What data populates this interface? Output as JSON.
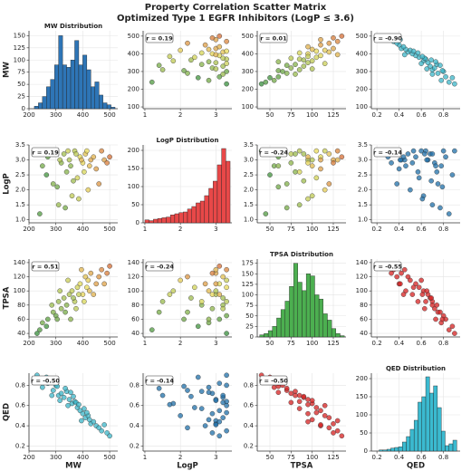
{
  "chart_data": {
    "type": "scatter_matrix",
    "title": "Property Correlation Scatter Matrix",
    "subtitle": "Optimized Type 1 EGFR Inhibitors (LogP ≤ 3.6)",
    "grid": true,
    "color_by": "QED",
    "colormap": [
      "#c8281e",
      "#e8dc5a",
      "#2e8b3a"
    ],
    "variables": [
      {
        "name": "MW",
        "point_color": "#3bb5c8",
        "values": [
          250,
          270,
          290,
          300,
          310,
          320,
          330,
          340,
          350,
          360,
          370,
          380,
          390,
          400,
          410,
          420,
          430,
          450,
          470,
          500,
          240,
          265,
          285,
          305,
          315,
          335,
          345,
          355,
          365,
          375,
          385,
          395,
          405,
          415,
          425,
          440,
          460,
          480,
          490,
          230
        ],
        "xlim": [
          200,
          530
        ],
        "xticks": [
          200,
          300,
          400,
          500
        ],
        "ylim": [
          90,
          530
        ],
        "yticks": [
          100,
          200,
          300,
          400,
          500
        ],
        "hist": {
          "title": "MW Distribution",
          "color": "#2e75b6",
          "bins": [
            220,
            235,
            250,
            265,
            280,
            295,
            310,
            325,
            340,
            355,
            370,
            385,
            400,
            415,
            430,
            445,
            460,
            475,
            490,
            505,
            520
          ],
          "counts": [
            5,
            12,
            25,
            45,
            60,
            90,
            150,
            90,
            85,
            100,
            140,
            90,
            110,
            80,
            45,
            55,
            28,
            12,
            8,
            3
          ],
          "ylim": [
            0,
            160
          ],
          "yticks": [
            0,
            25,
            50,
            75,
            100,
            125,
            150
          ]
        }
      },
      {
        "name": "LogP",
        "point_color": "#1f6fa8",
        "values": [
          2.8,
          3.1,
          2.2,
          3.3,
          1.5,
          2.9,
          3.2,
          2.6,
          3.0,
          1.8,
          3.3,
          2.4,
          3.1,
          2.9,
          3.2,
          2.0,
          3.0,
          2.7,
          3.3,
          3.1,
          1.2,
          2.5,
          3.2,
          2.1,
          3.0,
          1.4,
          3.3,
          2.8,
          2.3,
          3.2,
          1.7,
          3.0,
          2.6,
          3.3,
          2.8,
          3.1,
          2.2,
          3.0,
          2.9,
          3.3
        ],
        "xlim": [
          0.95,
          3.45
        ],
        "xticks": [
          1,
          2,
          3
        ],
        "ylim": [
          0.9,
          3.5
        ],
        "yticks": [
          {
            "value": 1,
            "label": "1.0"
          },
          1.5,
          {
            "value": 2,
            "label": "2.0"
          },
          2.5,
          {
            "value": 3,
            "label": "3.0"
          },
          3.5
        ],
        "hist": {
          "title": "LogP Distribution",
          "color": "#e84848",
          "bins": [
            1.0,
            1.12,
            1.24,
            1.36,
            1.48,
            1.6,
            1.72,
            1.84,
            1.96,
            2.08,
            2.2,
            2.32,
            2.44,
            2.56,
            2.68,
            2.8,
            2.92,
            3.04,
            3.16,
            3.28,
            3.4
          ],
          "counts": [
            8,
            6,
            10,
            12,
            14,
            16,
            22,
            25,
            28,
            30,
            38,
            45,
            55,
            60,
            75,
            95,
            115,
            160,
            205,
            170
          ],
          "ylim": [
            0,
            215
          ],
          "yticks": [
            0,
            50,
            100,
            150,
            200
          ]
        }
      },
      {
        "name": "TPSA",
        "point_color": "#d62020",
        "values": [
          55,
          60,
          70,
          65,
          85,
          75,
          90,
          80,
          95,
          100,
          85,
          105,
          110,
          95,
          120,
          115,
          125,
          110,
          130,
          135,
          45,
          50,
          80,
          60,
          100,
          70,
          115,
          60,
          90,
          75,
          95,
          130,
          85,
          105,
          100,
          95,
          120,
          110,
          125,
          40
        ],
        "xlim": [
          35,
          140
        ],
        "xticks": [
          50,
          75,
          100,
          125
        ],
        "ylim": [
          35,
          145
        ],
        "yticks": [
          40,
          60,
          80,
          100,
          120,
          140
        ],
        "hist": {
          "title": "TPSA Distribution",
          "color": "#4caf50",
          "bins": [
            38,
            43,
            48,
            53,
            58,
            63,
            68,
            73,
            78,
            83,
            88,
            93,
            98,
            103,
            108,
            113,
            118,
            123,
            128,
            133,
            138
          ],
          "counts": [
            5,
            8,
            15,
            25,
            45,
            65,
            85,
            120,
            175,
            130,
            110,
            150,
            145,
            100,
            90,
            55,
            40,
            20,
            8,
            3
          ],
          "ylim": [
            0,
            185
          ],
          "yticks": [
            0,
            25,
            50,
            75,
            100,
            125,
            150,
            175
          ]
        }
      },
      {
        "name": "QED",
        "point_color": "#3bb5c8",
        "values": [
          0.78,
          0.82,
          0.75,
          0.8,
          0.7,
          0.72,
          0.68,
          0.74,
          0.66,
          0.62,
          0.64,
          0.58,
          0.55,
          0.52,
          0.48,
          0.5,
          0.42,
          0.4,
          0.35,
          0.3,
          0.85,
          0.88,
          0.7,
          0.79,
          0.65,
          0.77,
          0.6,
          0.73,
          0.69,
          0.63,
          0.61,
          0.45,
          0.57,
          0.53,
          0.46,
          0.44,
          0.38,
          0.41,
          0.33,
          0.9
        ],
        "xlim": [
          0.15,
          0.95
        ],
        "xticks": [
          0.2,
          0.4,
          0.6,
          0.8
        ],
        "ylim": [
          0.15,
          0.92
        ],
        "yticks": [
          0.2,
          0.4,
          0.6,
          0.8
        ],
        "hist": {
          "title": "QED Distribution",
          "color": "#3bbad0",
          "bins": [
            0.22,
            0.255,
            0.29,
            0.325,
            0.36,
            0.395,
            0.43,
            0.465,
            0.5,
            0.535,
            0.57,
            0.605,
            0.64,
            0.675,
            0.71,
            0.745,
            0.78,
            0.815,
            0.85,
            0.885,
            0.92
          ],
          "counts": [
            3,
            3,
            5,
            8,
            10,
            12,
            25,
            40,
            60,
            85,
            135,
            150,
            205,
            160,
            180,
            120,
            55,
            15,
            20,
            30
          ],
          "ylim": [
            0,
            215
          ],
          "yticks": [
            0,
            50,
            100,
            150,
            200
          ]
        }
      }
    ],
    "correlations": [
      "r = 0.19",
      "r = 0.01",
      "r = -0.90",
      "r = 0.19",
      "r = -0.24",
      "r = -0.14",
      "r = 0.51",
      "r = -0.24",
      "r = -0.55",
      "r = -0.50",
      "r = -0.14",
      "r = -0.50"
    ]
  }
}
